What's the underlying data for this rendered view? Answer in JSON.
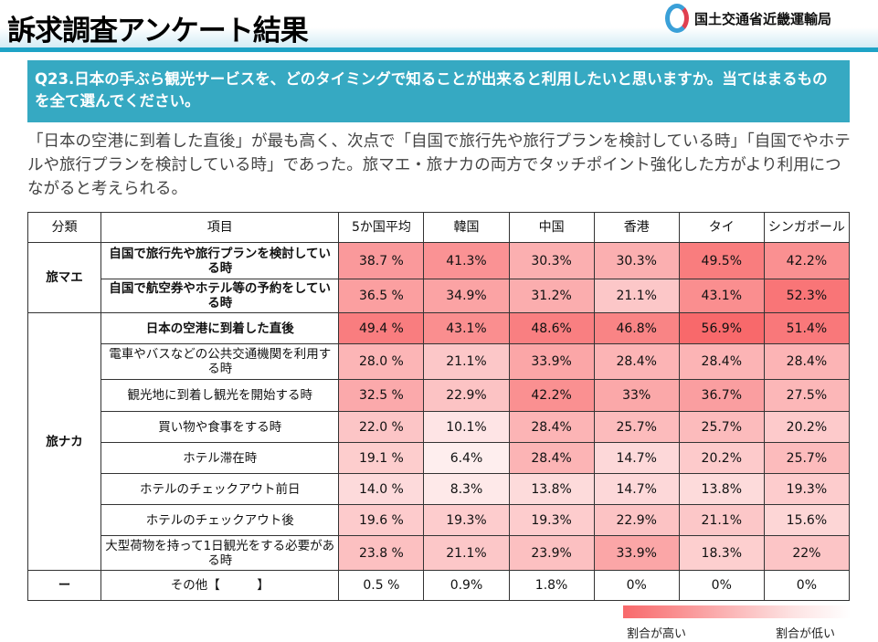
{
  "header": {
    "title": "訴求調査アンケート結果",
    "org": "国土交通省近畿運輸局"
  },
  "question": "Q23.日本の手ぶら観光サービスを、どのタイミングで知ることが出来ると利用したいと思いますか。当てはまるものを全て選んでください。",
  "summary": "「日本の空港に到着した直後」が最も高く、次点で「自国で旅行先や旅行プランを検討している時」「自国でやホテルや旅行プランを検討している時」であった。旅マエ・旅ナカの両方でタッチポイント強化した方がより利用につながると考えられる。",
  "table": {
    "headers": [
      "分類",
      "項目",
      "5か国平均",
      "韓国",
      "中国",
      "香港",
      "タイ",
      "シンガポール"
    ],
    "groups": [
      {
        "category": "旅マエ",
        "rows": [
          {
            "item": "自国で旅行先や旅行プランを検討している時",
            "bold": true,
            "values": [
              "38.7 %",
              "41.3%",
              "30.3%",
              "30.3%",
              "49.5%",
              "42.2%"
            ]
          },
          {
            "item": "自国で航空券やホテル等の予約をしている時",
            "bold": true,
            "values": [
              "36.5 %",
              "34.9%",
              "31.2%",
              "21.1%",
              "43.1%",
              "52.3%"
            ]
          }
        ]
      },
      {
        "category": "旅ナカ",
        "rows": [
          {
            "item": "日本の空港に到着した直後",
            "bold": true,
            "values": [
              "49.4 %",
              "43.1%",
              "48.6%",
              "46.8%",
              "56.9%",
              "51.4%"
            ]
          },
          {
            "item": "電車やバスなどの公共交通機関を利用する時",
            "values": [
              "28.0 %",
              "21.1%",
              "33.9%",
              "28.4%",
              "28.4%",
              "28.4%"
            ]
          },
          {
            "item": "観光地に到着し観光を開始する時",
            "values": [
              "32.5 %",
              "22.9%",
              "42.2%",
              "33%",
              "36.7%",
              "27.5%"
            ]
          },
          {
            "item": "買い物や食事をする時",
            "values": [
              "22.0 %",
              "10.1%",
              "28.4%",
              "25.7%",
              "25.7%",
              "20.2%"
            ]
          },
          {
            "item": "ホテル滞在時",
            "values": [
              "19.1 %",
              "6.4%",
              "28.4%",
              "14.7%",
              "20.2%",
              "25.7%"
            ]
          },
          {
            "item": "ホテルのチェックアウト前日",
            "values": [
              "14.0 %",
              "8.3%",
              "13.8%",
              "14.7%",
              "13.8%",
              "19.3%"
            ]
          },
          {
            "item": "ホテルのチェックアウト後",
            "values": [
              "19.6 %",
              "19.3%",
              "19.3%",
              "22.9%",
              "21.1%",
              "15.6%"
            ]
          },
          {
            "item": "大型荷物を持って1日観光をする必要がある時",
            "values": [
              "23.8 %",
              "21.1%",
              "23.9%",
              "33.9%",
              "18.3%",
              "22%"
            ]
          }
        ]
      },
      {
        "category": "ー",
        "rows": [
          {
            "item": "その他【　　　】",
            "values": [
              "0.5 %",
              "0.9%",
              "1.8%",
              "0%",
              "0%",
              "0%"
            ],
            "nocolor": true
          }
        ]
      }
    ]
  },
  "legend": {
    "high": "割合が高い",
    "low": "割合が低い",
    "high_color": "#f8696b",
    "low_color": "#ffffff"
  }
}
